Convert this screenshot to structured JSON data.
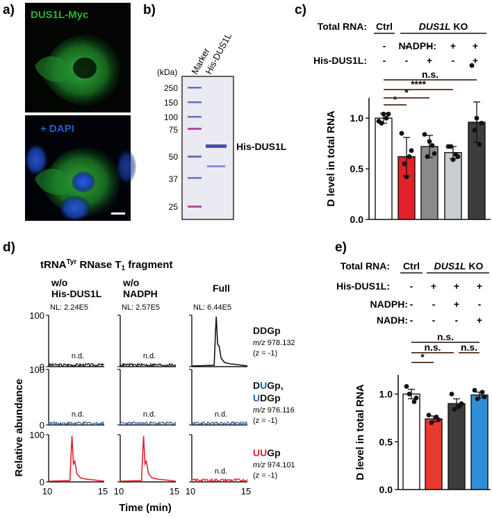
{
  "panel_a": {
    "label": "a)",
    "top_caption": "DUS1L-Myc",
    "bottom_caption": "+ DAPI",
    "colors": {
      "green": "#2fae3a",
      "blue": "#1f5fd0"
    }
  },
  "panel_b": {
    "label": "b)",
    "kda_label": "(kDa)",
    "ladder": [
      "250",
      "150",
      "100",
      "75",
      "50",
      "37",
      "25"
    ],
    "lanes": [
      "Marker",
      "His-DUS1L"
    ],
    "band_label": "His-DUS1L"
  },
  "panel_c": {
    "label": "c)",
    "rows": [
      {
        "name": "Total RNA:",
        "values": [
          "Ctrl",
          "DUS1L KO"
        ]
      },
      {
        "name": "NADPH:",
        "values": [
          "-",
          "-",
          "-",
          "+",
          "+"
        ]
      },
      {
        "name": "His-DUS1L:",
        "values": [
          "-",
          "-",
          "+",
          "-",
          "+"
        ]
      }
    ],
    "ko_italic": "DUS1L",
    "ko_suffix": " KO",
    "sig": [
      "*",
      "*",
      "****",
      "n.s."
    ],
    "colors": [
      "#ffffff",
      "#e0212b",
      "#8a8a8a",
      "#c8cdd0",
      "#3c3c3c"
    ]
  },
  "panel_d": {
    "label": "d)",
    "title_prefix": "tRNA",
    "title_sup": "Tyr",
    "title_suffix": " RNase T",
    "title_sub": "1",
    "title_end": " fragment",
    "columns": [
      {
        "line1": "w/o",
        "line2": "His-DUS1L",
        "nl": "NL: 2.24E5"
      },
      {
        "line1": "w/o",
        "line2": "NADPH",
        "nl": "NL: 2.57E5"
      },
      {
        "line1": "",
        "line2": "Full",
        "nl": "NL: 6.44E5"
      }
    ],
    "rows": [
      {
        "name_a": "DDGp",
        "name_b": "",
        "mz_label": "m/z",
        "mz": " 978.132",
        "z": "(z = -1)",
        "color": "#111111"
      },
      {
        "name_a": "DUGp,",
        "name_b": "UDGp",
        "mz_label": "m/z",
        "mz": " 976.116",
        "z": "(z = -1)",
        "color": "#1f5fb0"
      },
      {
        "name_a": "UUGp",
        "name_b": "",
        "mz_label": "m/z",
        "mz": " 974.101",
        "z": "(z = -1)",
        "color": "#e0212b"
      }
    ],
    "nd": "n.d.",
    "ylabel": "Relative abundance",
    "xlabel": "Time (min)",
    "y_ticks": [
      "0",
      "100"
    ],
    "x_ticks": [
      "10",
      "15"
    ]
  },
  "panel_e": {
    "label": "e)",
    "rows": [
      {
        "name": "Total RNA:",
        "values": [
          "Ctrl",
          "DUS1L KO"
        ]
      },
      {
        "name": "His-DUS1L:",
        "values": [
          "-",
          "+",
          "+",
          "+"
        ]
      },
      {
        "name": "NADPH:",
        "values": [
          "-",
          "-",
          "+",
          "-"
        ]
      },
      {
        "name": "NADH:",
        "values": [
          "-",
          "-",
          "-",
          "+"
        ]
      }
    ],
    "ko_italic": "DUS1L",
    "ko_suffix": " KO",
    "sig": [
      "*",
      "n.s.",
      "n.s.",
      "n.s."
    ],
    "colors": [
      "#ffffff",
      "#e63a2a",
      "#3c3c3c",
      "#2e8fd6"
    ]
  },
  "chart_data": [
    {
      "type": "bar",
      "panel": "c",
      "ylabel": "D level in total RNA",
      "ylim": [
        0,
        1.2
      ],
      "y_ticks": [
        "0.0",
        "0.5",
        "1.0"
      ],
      "values": [
        1.0,
        0.62,
        0.72,
        0.66,
        0.96
      ],
      "errors": [
        0.05,
        0.19,
        0.11,
        0.06,
        0.2
      ],
      "points": [
        [
          0.97,
          1.04,
          0.95,
          1.0,
          1.04
        ],
        [
          0.85,
          0.68,
          0.55,
          0.62,
          0.42
        ],
        [
          0.84,
          0.65,
          0.62,
          0.73,
          0.77
        ],
        [
          0.72,
          0.62,
          0.72,
          0.64,
          0.59
        ],
        [
          1.52,
          0.95,
          0.88,
          0.74,
          1.0
        ]
      ]
    },
    {
      "type": "bar",
      "panel": "e",
      "ylabel": "D level in total RNA",
      "ylim": [
        0,
        1.2
      ],
      "y_ticks": [
        "0.0",
        "0.5",
        "1.0"
      ],
      "values": [
        1.0,
        0.74,
        0.9,
        0.99
      ],
      "errors": [
        0.05,
        0.03,
        0.05,
        0.03
      ],
      "points": [
        [
          1.08,
          0.96,
          1.0,
          0.92
        ],
        [
          0.78,
          0.73,
          0.7,
          0.76
        ],
        [
          1.0,
          0.9,
          0.84,
          0.87
        ],
        [
          1.04,
          0.97,
          0.95,
          1.02
        ]
      ]
    },
    {
      "type": "line",
      "panel": "d",
      "x_range": [
        10,
        15
      ],
      "y_range": [
        0,
        100
      ],
      "peaks": [
        [
          null,
          null,
          12.2
        ],
        [
          null,
          null,
          null
        ],
        [
          12.1,
          12.1,
          null
        ]
      ]
    }
  ]
}
